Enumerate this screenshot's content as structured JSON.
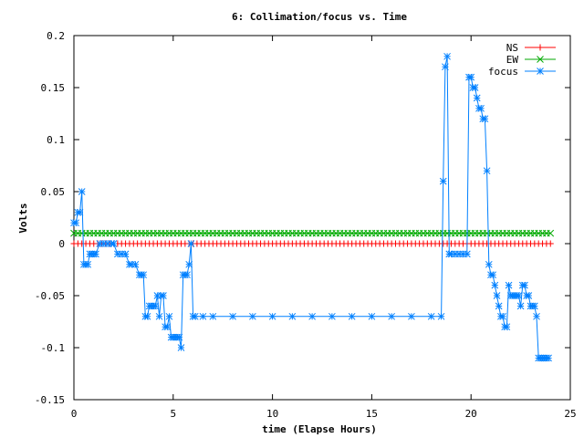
{
  "chart_data": {
    "type": "line",
    "title": "6: Collimation/focus vs. Time",
    "xlabel": "time (Elapse Hours)",
    "ylabel": "Volts",
    "xlim": [
      0,
      25
    ],
    "ylim": [
      -0.15,
      0.2
    ],
    "x_ticks": [
      0,
      5,
      10,
      15,
      20,
      25
    ],
    "x_tick_labels": [
      "0",
      "5",
      "10",
      "15",
      "20",
      "25"
    ],
    "y_ticks": [
      -0.15,
      -0.1,
      -0.05,
      0,
      0.05,
      0.1,
      0.15,
      0.2
    ],
    "y_tick_labels": [
      "-0.15",
      "-0.1",
      "-0.05",
      "0",
      "0.05",
      "0.1",
      "0.15",
      "0.2"
    ],
    "grid": false,
    "legend_position": "top-right",
    "series": [
      {
        "name": "NS",
        "color": "#ff0000",
        "marker": "plus",
        "x": [
          0,
          24
        ],
        "values": [
          0,
          0
        ],
        "dense_markers": true
      },
      {
        "name": "EW",
        "color": "#00aa00",
        "marker": "cross",
        "x": [
          0,
          24
        ],
        "values": [
          0.01,
          0.01
        ],
        "dense_markers": true
      },
      {
        "name": "focus",
        "color": "#0080ff",
        "marker": "star",
        "x": [
          0,
          0.1,
          0.2,
          0.3,
          0.4,
          0.5,
          0.6,
          0.7,
          0.8,
          0.9,
          1.0,
          1.1,
          1.3,
          1.5,
          1.7,
          1.9,
          2.0,
          2.2,
          2.4,
          2.6,
          2.8,
          2.9,
          3.1,
          3.3,
          3.4,
          3.5,
          3.6,
          3.7,
          3.8,
          3.9,
          4.0,
          4.1,
          4.2,
          4.3,
          4.4,
          4.5,
          4.6,
          4.7,
          4.8,
          4.9,
          5.0,
          5.1,
          5.2,
          5.3,
          5.4,
          5.5,
          5.6,
          5.7,
          5.8,
          5.9,
          6.0,
          6.1,
          6.5,
          7.0,
          8.0,
          9.0,
          10.0,
          11.0,
          12.0,
          13.0,
          14.0,
          15.0,
          16.0,
          17.0,
          18.0,
          18.5,
          18.6,
          18.7,
          18.8,
          18.9,
          19.0,
          19.2,
          19.4,
          19.6,
          19.8,
          19.9,
          20.0,
          20.1,
          20.2,
          20.3,
          20.4,
          20.5,
          20.6,
          20.7,
          20.8,
          20.9,
          21.0,
          21.1,
          21.2,
          21.3,
          21.4,
          21.5,
          21.6,
          21.7,
          21.8,
          21.9,
          22.0,
          22.1,
          22.2,
          22.3,
          22.4,
          22.5,
          22.6,
          22.7,
          22.8,
          22.9,
          23.0,
          23.1,
          23.2,
          23.3,
          23.4,
          23.5,
          23.6,
          23.7,
          23.8,
          23.9
        ],
        "values": [
          0.02,
          0.02,
          0.03,
          0.03,
          0.05,
          -0.02,
          -0.02,
          -0.02,
          -0.01,
          -0.01,
          -0.01,
          -0.01,
          0,
          0,
          0,
          0,
          0,
          -0.01,
          -0.01,
          -0.01,
          -0.02,
          -0.02,
          -0.02,
          -0.03,
          -0.03,
          -0.03,
          -0.07,
          -0.07,
          -0.06,
          -0.06,
          -0.06,
          -0.06,
          -0.05,
          -0.07,
          -0.05,
          -0.05,
          -0.08,
          -0.08,
          -0.07,
          -0.09,
          -0.09,
          -0.09,
          -0.09,
          -0.09,
          -0.1,
          -0.03,
          -0.03,
          -0.03,
          -0.02,
          0,
          -0.07,
          -0.07,
          -0.07,
          -0.07,
          -0.07,
          -0.07,
          -0.07,
          -0.07,
          -0.07,
          -0.07,
          -0.07,
          -0.07,
          -0.07,
          -0.07,
          -0.07,
          -0.07,
          0.06,
          0.17,
          0.18,
          -0.01,
          -0.01,
          -0.01,
          -0.01,
          -0.01,
          -0.01,
          0.16,
          0.16,
          0.15,
          0.15,
          0.14,
          0.13,
          0.13,
          0.12,
          0.12,
          0.07,
          -0.02,
          -0.03,
          -0.03,
          -0.04,
          -0.05,
          -0.06,
          -0.07,
          -0.07,
          -0.08,
          -0.08,
          -0.04,
          -0.05,
          -0.05,
          -0.05,
          -0.05,
          -0.05,
          -0.06,
          -0.04,
          -0.04,
          -0.05,
          -0.05,
          -0.06,
          -0.06,
          -0.06,
          -0.07,
          -0.11,
          -0.11,
          -0.11,
          -0.11,
          -0.11,
          -0.11
        ]
      }
    ]
  }
}
